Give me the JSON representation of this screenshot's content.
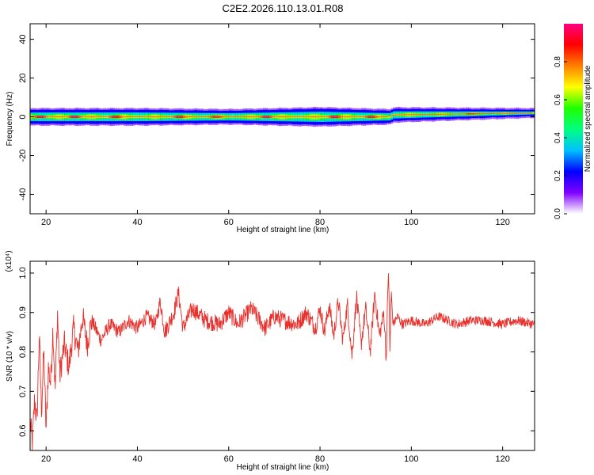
{
  "title": "C2E2.2026.110.13.01.R08",
  "chart_data": [
    {
      "type": "heatmap",
      "title": "",
      "xlabel": "Height of straight line (km)",
      "ylabel": "Frequency (Hz)",
      "xlim": [
        16.5,
        127
      ],
      "ylim": [
        -50,
        48
      ],
      "xticks": [
        20,
        40,
        60,
        80,
        100,
        120
      ],
      "yticks": [
        40,
        20,
        0,
        -20,
        -40
      ],
      "colorbar": {
        "label": "Normalized spectral amplitude",
        "range": [
          0,
          1
        ],
        "ticks": [
          0.0,
          0.2,
          0.4,
          0.6,
          0.8
        ],
        "tick_labels": [
          "0.0",
          "0.2",
          "0.4",
          "0.6",
          "0.8"
        ],
        "colors": [
          "#ffffff",
          "#8000ff",
          "#0000ff",
          "#00c0ff",
          "#00ff80",
          "#20ff00",
          "#ffff00",
          "#ff8000",
          "#ff0000",
          "#ff0080"
        ]
      },
      "band": {
        "center_freq_hz": 0,
        "halfwidth_hz": [
          [
            17,
            3
          ],
          [
            40,
            3
          ],
          [
            60,
            2.5
          ],
          [
            80,
            3.5
          ],
          [
            95,
            2.5
          ],
          [
            127,
            1
          ]
        ],
        "ridge_freq_hz": [
          [
            17,
            0
          ],
          [
            95,
            0
          ],
          [
            96,
            1
          ],
          [
            127,
            2
          ]
        ],
        "hotspots_km": [
          18.5,
          26,
          35,
          49,
          57,
          68,
          83,
          91,
          113
        ]
      }
    },
    {
      "type": "line",
      "title": "",
      "xlabel": "Height of straight line (km)",
      "ylabel": "SNR (10 * v/v)",
      "scale_label": "(x10⁴)",
      "xlim": [
        16.5,
        127
      ],
      "ylim": [
        0.55,
        1.03
      ],
      "xticks": [
        20,
        40,
        60,
        80,
        100,
        120
      ],
      "yticks": [
        0.6,
        0.7,
        0.8,
        0.9,
        1.0
      ],
      "color": "#e8302c",
      "series": [
        {
          "name": "SNR",
          "x": [
            16.5,
            17,
            17.5,
            18,
            18.5,
            19,
            19.5,
            20,
            20.5,
            21,
            21.5,
            22,
            22.5,
            23,
            24,
            25,
            26,
            27,
            28,
            29,
            30,
            32,
            34,
            36,
            38,
            40,
            42,
            44,
            45,
            46,
            48,
            49,
            50,
            52,
            55,
            58,
            60,
            62,
            65,
            68,
            70,
            72,
            75,
            77,
            79,
            80,
            81,
            82,
            83,
            84,
            85,
            86,
            87,
            88,
            89,
            90,
            91,
            92,
            93,
            94,
            94.5,
            95,
            95.3,
            95.6,
            96,
            97,
            98,
            100,
            103,
            106,
            110,
            113,
            116,
            120,
            123,
            127
          ],
          "y": [
            0.62,
            0.57,
            0.68,
            0.62,
            0.84,
            0.65,
            0.8,
            0.6,
            0.76,
            0.72,
            0.86,
            0.7,
            0.9,
            0.74,
            0.82,
            0.76,
            0.86,
            0.8,
            0.89,
            0.82,
            0.88,
            0.83,
            0.87,
            0.85,
            0.88,
            0.86,
            0.89,
            0.87,
            0.93,
            0.85,
            0.9,
            0.95,
            0.86,
            0.91,
            0.88,
            0.87,
            0.9,
            0.87,
            0.91,
            0.86,
            0.89,
            0.88,
            0.87,
            0.9,
            0.86,
            0.91,
            0.85,
            0.92,
            0.84,
            0.93,
            0.83,
            0.92,
            0.79,
            0.94,
            0.82,
            0.91,
            0.8,
            0.95,
            0.84,
            0.9,
            0.78,
            1.02,
            0.8,
            0.95,
            0.87,
            0.89,
            0.87,
            0.88,
            0.87,
            0.89,
            0.87,
            0.88,
            0.88,
            0.87,
            0.88,
            0.87
          ]
        }
      ]
    }
  ]
}
